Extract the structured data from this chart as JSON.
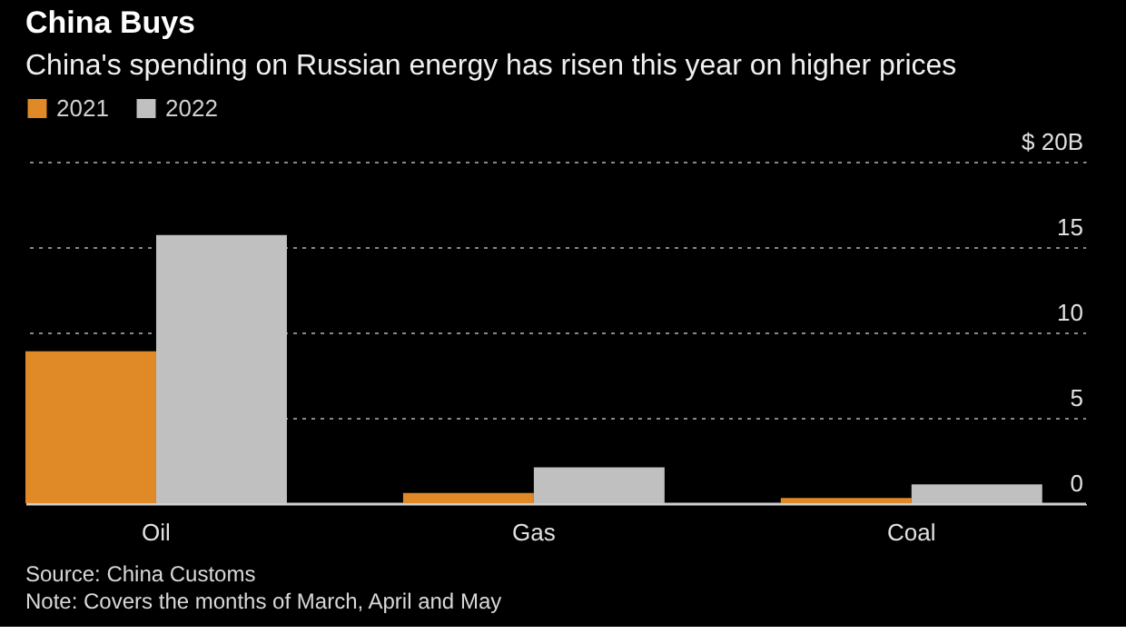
{
  "chart_data": {
    "type": "bar",
    "title": "China Buys",
    "subtitle": "China's spending on Russian energy has risen this year on higher prices",
    "categories": [
      "Oil",
      "Gas",
      "Coal"
    ],
    "series": [
      {
        "name": "2021",
        "color": "#e08a27",
        "values": [
          8.9,
          0.6,
          0.3
        ]
      },
      {
        "name": "2022",
        "color": "#c0c0c0",
        "values": [
          15.7,
          2.1,
          1.1
        ]
      }
    ],
    "ylim": [
      0,
      20
    ],
    "yticks": [
      0,
      5,
      10,
      15,
      {
        "value": 20,
        "label": "$ 20B"
      }
    ],
    "grid": "y",
    "legend": "top left",
    "annotations": [
      "Source: China Customs",
      "Note: Covers the months of March, April and May"
    ]
  }
}
